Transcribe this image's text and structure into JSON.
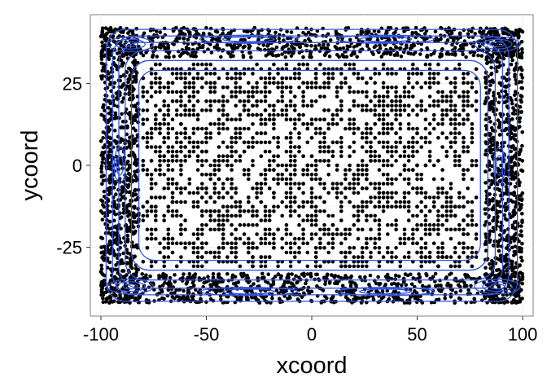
{
  "chart_data": {
    "type": "scatter",
    "title": "",
    "xlabel": "xcoord",
    "ylabel": "ycoord",
    "xlim": [
      -105,
      105
    ],
    "ylim": [
      -46,
      46
    ],
    "x_ticks": [
      -100,
      -50,
      0,
      50,
      100
    ],
    "x_tick_labels": [
      "-100",
      "-50",
      "0",
      "50",
      "100"
    ],
    "y_ticks": [
      -25,
      0,
      25
    ],
    "y_tick_labels": [
      "-25",
      "0",
      "25"
    ],
    "grid": true,
    "legend": "none",
    "points": {
      "x_range": [
        -100,
        100
      ],
      "y_range": [
        -42,
        42
      ],
      "dense_border": "outer ring of points (|x| > 82 or |y| > 33) is nearly solid black",
      "interior": "scattered points, moderate density",
      "color": "#000000"
    },
    "density_contours": {
      "color": "#3355dd",
      "levels": 12,
      "description": "2D density contours: many nested lines along the outer border, with peaks near the four corners, plus one rounded-rectangle contour around x from -82 to 80, y from -29 to 29"
    }
  }
}
